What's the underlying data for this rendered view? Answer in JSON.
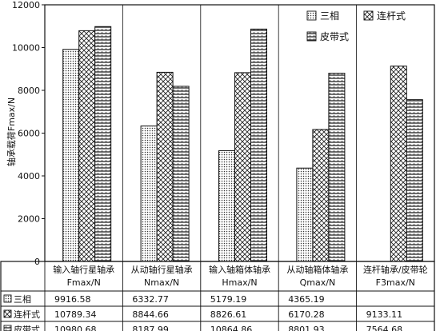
{
  "chart_data": {
    "type": "bar",
    "ylabel": "轴承载荷Fmax/N",
    "ylim": [
      0,
      12000
    ],
    "yticks": [
      0,
      2000,
      4000,
      6000,
      8000,
      10000,
      12000
    ],
    "categories": [
      {
        "line1": "输入轴行星轴承",
        "line2": "Fmax/N"
      },
      {
        "line1": "从动轴行星轴承",
        "line2": "Nmax/N"
      },
      {
        "line1": "输入轴箱体轴承",
        "line2": "Hmax/N"
      },
      {
        "line1": "从动轴箱体轴承",
        "line2": "Qmax/N"
      },
      {
        "line1": "连杆轴承/皮带轮",
        "line2": "F3max/N"
      }
    ],
    "series": [
      {
        "name": "三相",
        "pattern": "dots",
        "values": [
          9916.58,
          6332.77,
          5179.19,
          4365.19,
          null
        ],
        "labels": [
          "9916.58",
          "6332.77",
          "5179.19",
          "4365.19",
          ""
        ]
      },
      {
        "name": "连杆式",
        "pattern": "crosshatch",
        "values": [
          10789.34,
          8844.66,
          8826.61,
          6170.28,
          9133.11
        ],
        "labels": [
          "10789.34",
          "8844.66",
          "8826.61",
          "6170.28",
          "9133.11"
        ]
      },
      {
        "name": "皮带式",
        "pattern": "hlines",
        "values": [
          10980.68,
          8187.99,
          10864.86,
          8801.93,
          7564.68
        ],
        "labels": [
          "10980.68",
          "8187.99",
          "10864.86",
          "8801.93",
          "7564.68"
        ]
      }
    ],
    "legend_position": "top-right",
    "grid": false,
    "data_table": true
  }
}
